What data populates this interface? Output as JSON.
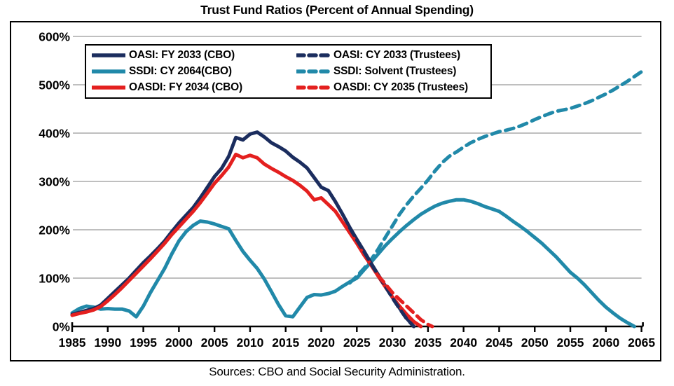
{
  "title": "Trust Fund Ratios (Percent of Annual Spending)",
  "source": "Sources: CBO and Social Security Administration.",
  "colors": {
    "navy": "#1b2d5e",
    "teal": "#2189a9",
    "red": "#e4201f",
    "grid": "#bfbfbf",
    "axis": "#000000",
    "background": "#ffffff"
  },
  "legend": {
    "position": "top-left-inside",
    "items": [
      {
        "label": "OASI: FY 2033 (CBO)",
        "color": "navy",
        "style": "solid"
      },
      {
        "label": "SSDI: CY 2064(CBO)",
        "color": "teal",
        "style": "solid"
      },
      {
        "label": "OASDI: FY 2034 (CBO)",
        "color": "red",
        "style": "solid"
      },
      {
        "label": "OASI: CY 2033 (Trustees)",
        "color": "navy",
        "style": "dashed"
      },
      {
        "label": "SSDI: Solvent (Trustees)",
        "color": "teal",
        "style": "dashed"
      },
      {
        "label": "OASDI: CY 2035 (Trustees)",
        "color": "red",
        "style": "dashed"
      }
    ]
  },
  "chart_data": {
    "type": "line",
    "title": "Trust Fund Ratios (Percent of Annual Spending)",
    "xlabel": "",
    "ylabel": "",
    "xlim": [
      1985,
      2065
    ],
    "ylim": [
      0,
      600
    ],
    "grid": "horizontal",
    "x_ticks": [
      1985,
      1990,
      1995,
      2000,
      2005,
      2010,
      2015,
      2020,
      2025,
      2030,
      2035,
      2040,
      2045,
      2050,
      2055,
      2060,
      2065
    ],
    "y_ticks": [
      {
        "value": 0,
        "label": "0%"
      },
      {
        "value": 100,
        "label": "100%"
      },
      {
        "value": 200,
        "label": "200%"
      },
      {
        "value": 300,
        "label": "300%"
      },
      {
        "value": 400,
        "label": "400%"
      },
      {
        "value": 500,
        "label": "500%"
      },
      {
        "value": 600,
        "label": "600%"
      }
    ],
    "series": [
      {
        "name": "SSDI: CY 2064(CBO)",
        "color": "teal",
        "style": "solid",
        "points": [
          [
            1985,
            28
          ],
          [
            1986,
            37
          ],
          [
            1987,
            42
          ],
          [
            1988,
            40
          ],
          [
            1989,
            36
          ],
          [
            1990,
            37
          ],
          [
            1991,
            36
          ],
          [
            1992,
            36
          ],
          [
            1993,
            32
          ],
          [
            1994,
            20
          ],
          [
            1995,
            42
          ],
          [
            1996,
            70
          ],
          [
            1997,
            95
          ],
          [
            1998,
            120
          ],
          [
            1999,
            150
          ],
          [
            2000,
            177
          ],
          [
            2001,
            196
          ],
          [
            2002,
            209
          ],
          [
            2003,
            218
          ],
          [
            2004,
            216
          ],
          [
            2005,
            212
          ],
          [
            2006,
            207
          ],
          [
            2007,
            202
          ],
          [
            2008,
            178
          ],
          [
            2009,
            155
          ],
          [
            2010,
            137
          ],
          [
            2011,
            120
          ],
          [
            2012,
            98
          ],
          [
            2013,
            72
          ],
          [
            2014,
            45
          ],
          [
            2015,
            22
          ],
          [
            2016,
            20
          ],
          [
            2017,
            40
          ],
          [
            2018,
            60
          ],
          [
            2019,
            66
          ],
          [
            2020,
            65
          ],
          [
            2021,
            68
          ],
          [
            2022,
            73
          ],
          [
            2023,
            83
          ],
          [
            2024,
            92
          ],
          [
            2025,
            100
          ],
          [
            2026,
            117
          ],
          [
            2027,
            133
          ],
          [
            2028,
            150
          ],
          [
            2029,
            167
          ],
          [
            2030,
            182
          ],
          [
            2031,
            196
          ],
          [
            2032,
            209
          ],
          [
            2033,
            221
          ],
          [
            2034,
            232
          ],
          [
            2035,
            241
          ],
          [
            2036,
            249
          ],
          [
            2037,
            255
          ],
          [
            2038,
            259
          ],
          [
            2039,
            262
          ],
          [
            2040,
            262
          ],
          [
            2041,
            259
          ],
          [
            2042,
            254
          ],
          [
            2043,
            248
          ],
          [
            2044,
            243
          ],
          [
            2045,
            238
          ],
          [
            2046,
            228
          ],
          [
            2047,
            217
          ],
          [
            2048,
            207
          ],
          [
            2049,
            196
          ],
          [
            2050,
            184
          ],
          [
            2051,
            172
          ],
          [
            2052,
            158
          ],
          [
            2053,
            144
          ],
          [
            2054,
            128
          ],
          [
            2055,
            112
          ],
          [
            2056,
            100
          ],
          [
            2057,
            86
          ],
          [
            2058,
            70
          ],
          [
            2059,
            54
          ],
          [
            2060,
            40
          ],
          [
            2061,
            28
          ],
          [
            2062,
            17
          ],
          [
            2063,
            8
          ],
          [
            2064,
            0
          ]
        ]
      },
      {
        "name": "SSDI: Solvent (Trustees)",
        "color": "teal",
        "style": "dashed",
        "points": [
          [
            2024,
            90
          ],
          [
            2025,
            104
          ],
          [
            2026,
            120
          ],
          [
            2027,
            138
          ],
          [
            2028,
            160
          ],
          [
            2029,
            184
          ],
          [
            2030,
            208
          ],
          [
            2031,
            232
          ],
          [
            2032,
            252
          ],
          [
            2033,
            270
          ],
          [
            2034,
            286
          ],
          [
            2035,
            303
          ],
          [
            2036,
            322
          ],
          [
            2037,
            339
          ],
          [
            2038,
            352
          ],
          [
            2039,
            361
          ],
          [
            2040,
            371
          ],
          [
            2041,
            380
          ],
          [
            2042,
            387
          ],
          [
            2043,
            393
          ],
          [
            2044,
            398
          ],
          [
            2045,
            403
          ],
          [
            2046,
            406
          ],
          [
            2047,
            410
          ],
          [
            2048,
            415
          ],
          [
            2049,
            421
          ],
          [
            2050,
            428
          ],
          [
            2051,
            434
          ],
          [
            2052,
            440
          ],
          [
            2053,
            445
          ],
          [
            2054,
            448
          ],
          [
            2055,
            451
          ],
          [
            2056,
            456
          ],
          [
            2057,
            461
          ],
          [
            2058,
            467
          ],
          [
            2059,
            474
          ],
          [
            2060,
            481
          ],
          [
            2061,
            489
          ],
          [
            2062,
            498
          ],
          [
            2063,
            507
          ],
          [
            2064,
            517
          ],
          [
            2065,
            527
          ]
        ]
      },
      {
        "name": "OASI: FY 2033 (CBO)",
        "color": "navy",
        "style": "solid",
        "points": [
          [
            1985,
            25
          ],
          [
            1986,
            29
          ],
          [
            1987,
            33
          ],
          [
            1988,
            37
          ],
          [
            1989,
            44
          ],
          [
            1990,
            58
          ],
          [
            1991,
            72
          ],
          [
            1992,
            86
          ],
          [
            1993,
            100
          ],
          [
            1994,
            116
          ],
          [
            1995,
            132
          ],
          [
            1996,
            146
          ],
          [
            1997,
            161
          ],
          [
            1998,
            177
          ],
          [
            1999,
            196
          ],
          [
            2000,
            214
          ],
          [
            2001,
            230
          ],
          [
            2002,
            246
          ],
          [
            2003,
            266
          ],
          [
            2004,
            288
          ],
          [
            2005,
            310
          ],
          [
            2006,
            327
          ],
          [
            2007,
            352
          ],
          [
            2008,
            391
          ],
          [
            2009,
            386
          ],
          [
            2010,
            398
          ],
          [
            2011,
            402
          ],
          [
            2012,
            392
          ],
          [
            2013,
            380
          ],
          [
            2014,
            372
          ],
          [
            2015,
            363
          ],
          [
            2016,
            350
          ],
          [
            2017,
            340
          ],
          [
            2018,
            328
          ],
          [
            2019,
            308
          ],
          [
            2020,
            288
          ],
          [
            2021,
            281
          ],
          [
            2022,
            258
          ],
          [
            2023,
            232
          ],
          [
            2024,
            205
          ],
          [
            2025,
            180
          ],
          [
            2026,
            156
          ],
          [
            2027,
            131
          ],
          [
            2028,
            107
          ],
          [
            2029,
            84
          ],
          [
            2030,
            60
          ],
          [
            2031,
            38
          ],
          [
            2032,
            17
          ],
          [
            2033,
            0
          ]
        ]
      },
      {
        "name": "OASDI: FY 2034 (CBO)",
        "color": "red",
        "style": "solid",
        "points": [
          [
            1985,
            23
          ],
          [
            1986,
            27
          ],
          [
            1987,
            30
          ],
          [
            1988,
            34
          ],
          [
            1989,
            41
          ],
          [
            1990,
            53
          ],
          [
            1991,
            66
          ],
          [
            1992,
            80
          ],
          [
            1993,
            95
          ],
          [
            1994,
            110
          ],
          [
            1995,
            125
          ],
          [
            1996,
            140
          ],
          [
            1997,
            156
          ],
          [
            1998,
            172
          ],
          [
            1999,
            190
          ],
          [
            2000,
            206
          ],
          [
            2001,
            222
          ],
          [
            2002,
            238
          ],
          [
            2003,
            256
          ],
          [
            2004,
            276
          ],
          [
            2005,
            296
          ],
          [
            2006,
            312
          ],
          [
            2007,
            330
          ],
          [
            2008,
            356
          ],
          [
            2009,
            349
          ],
          [
            2010,
            354
          ],
          [
            2011,
            349
          ],
          [
            2012,
            336
          ],
          [
            2013,
            327
          ],
          [
            2014,
            319
          ],
          [
            2015,
            310
          ],
          [
            2016,
            302
          ],
          [
            2017,
            292
          ],
          [
            2018,
            280
          ],
          [
            2019,
            262
          ],
          [
            2020,
            266
          ],
          [
            2021,
            252
          ],
          [
            2022,
            238
          ],
          [
            2023,
            216
          ],
          [
            2024,
            194
          ],
          [
            2025,
            172
          ],
          [
            2026,
            148
          ],
          [
            2027,
            127
          ],
          [
            2028,
            104
          ],
          [
            2029,
            82
          ],
          [
            2030,
            61
          ],
          [
            2031,
            42
          ],
          [
            2032,
            25
          ],
          [
            2033,
            10
          ],
          [
            2034,
            0
          ]
        ]
      },
      {
        "name": "OASI: CY 2033 (Trustees)",
        "color": "navy",
        "style": "dashed",
        "points": [
          [
            2024,
            204
          ],
          [
            2025,
            179
          ],
          [
            2026,
            155
          ],
          [
            2027,
            130
          ],
          [
            2028,
            106
          ],
          [
            2029,
            83
          ],
          [
            2030,
            59
          ],
          [
            2031,
            37
          ],
          [
            2032,
            16
          ],
          [
            2033,
            0
          ]
        ]
      },
      {
        "name": "OASDI: CY 2035 (Trustees)",
        "color": "red",
        "style": "dashed",
        "points": [
          [
            2028,
            105
          ],
          [
            2029,
            88
          ],
          [
            2030,
            70
          ],
          [
            2031,
            56
          ],
          [
            2032,
            42
          ],
          [
            2033,
            28
          ],
          [
            2034,
            14
          ],
          [
            2035,
            4
          ],
          [
            2035.6,
            0
          ]
        ]
      }
    ]
  }
}
